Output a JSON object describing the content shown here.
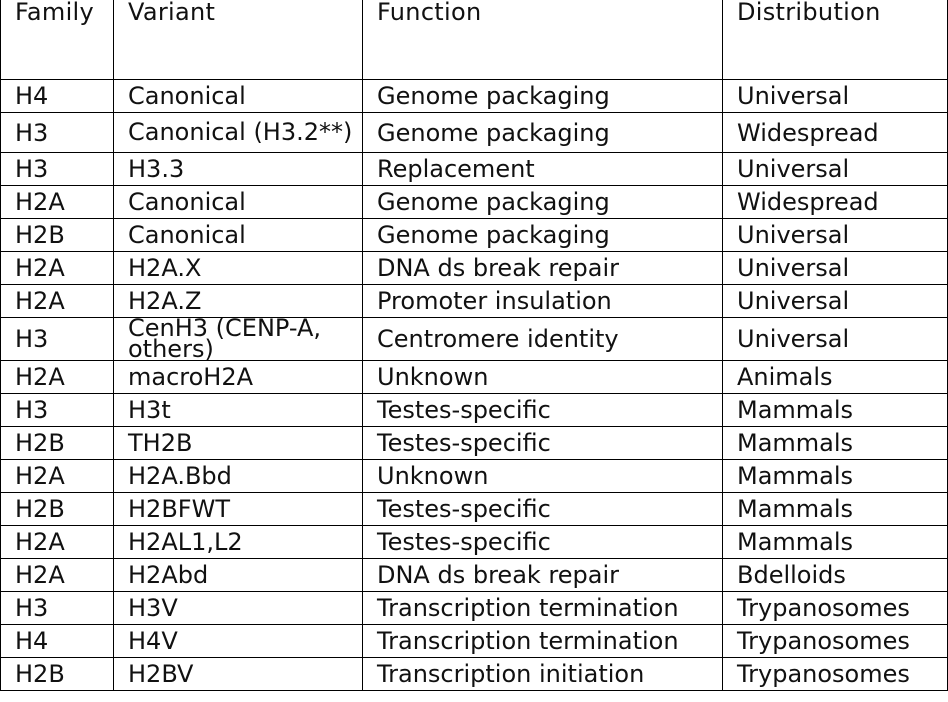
{
  "headers": [
    "Family",
    "Variant",
    "Function",
    "Distribution"
  ],
  "rows": [
    {
      "family": "H4",
      "variant": "Canonical",
      "function": "Genome packaging",
      "distribution": "Universal"
    },
    {
      "family": "H3",
      "variant": "Canonical (H3.2**)",
      "function": "Genome packaging",
      "distribution": "Widespread"
    },
    {
      "family": "H3",
      "variant": "H3.3",
      "function": "Replacement",
      "distribution": "Universal"
    },
    {
      "family": "H2A",
      "variant": "Canonical",
      "function": "Genome packaging",
      "distribution": "Widespread"
    },
    {
      "family": "H2B",
      "variant": "Canonical",
      "function": "Genome packaging",
      "distribution": "Universal"
    },
    {
      "family": "H2A",
      "variant": "H2A.X",
      "function": "DNA ds break repair",
      "distribution": "Universal"
    },
    {
      "family": "H2A",
      "variant": "H2A.Z",
      "function": "Promoter insulation",
      "distribution": "Universal"
    },
    {
      "family": "H3",
      "variant": "CenH3 (CENP-A, others)",
      "function": "Centromere identity",
      "distribution": "Universal"
    },
    {
      "family": "H2A",
      "variant": "macroH2A",
      "function": "Unknown",
      "distribution": "Animals"
    },
    {
      "family": "H3",
      "variant": "H3t",
      "function": "Testes-specific",
      "distribution": "Mammals"
    },
    {
      "family": "H2B",
      "variant": "TH2B",
      "function": "Testes-specific",
      "distribution": "Mammals"
    },
    {
      "family": "H2A",
      "variant": "H2A.Bbd",
      "function": "Unknown",
      "distribution": "Mammals"
    },
    {
      "family": "H2B",
      "variant": "H2BFWT",
      "function": "Testes-specific",
      "distribution": "Mammals"
    },
    {
      "family": "H2A",
      "variant": "H2AL1,L2",
      "function": "Testes-specific",
      "distribution": "Mammals"
    },
    {
      "family": "H2A",
      "variant": "H2Abd",
      "function": "DNA ds break repair",
      "distribution": "Bdelloids"
    },
    {
      "family": "H3",
      "variant": "H3V",
      "function": "Transcription termination",
      "distribution": "Trypanosomes"
    },
    {
      "family": "H4",
      "variant": "H4V",
      "function": "Transcription termination",
      "distribution": "Trypanosomes"
    },
    {
      "family": "H2B",
      "variant": "H2BV",
      "function": "Transcription initiation",
      "distribution": "Trypanosomes"
    }
  ]
}
